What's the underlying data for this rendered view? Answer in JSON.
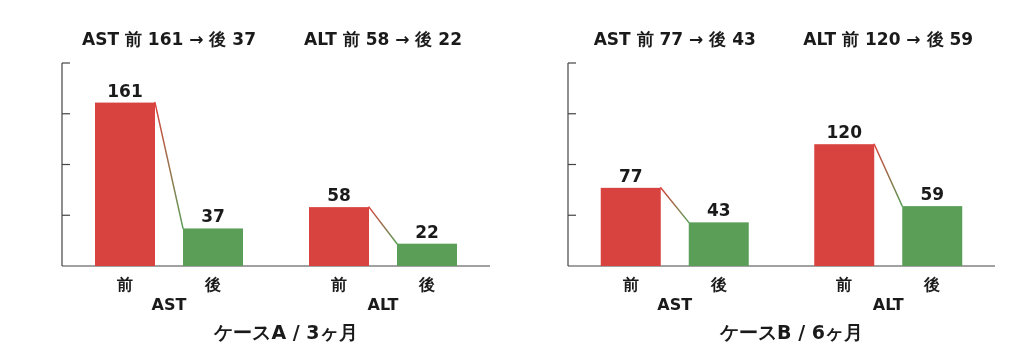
{
  "chart_data": [
    {
      "type": "bar",
      "title": "ケースA / 3ヶ月",
      "categories": [
        "AST",
        "ALT"
      ],
      "series": [
        {
          "name": "前",
          "color": "#d9433f",
          "values": [
            161,
            58
          ]
        },
        {
          "name": "後",
          "color": "#5a9e58",
          "values": [
            37,
            22
          ]
        }
      ],
      "ylim": [
        0,
        200
      ],
      "yticks": [
        {
          "value": 50,
          "label": null
        },
        {
          "value": 100,
          "label": null
        },
        {
          "value": 150,
          "label": null
        },
        {
          "value": 200,
          "label": null
        }
      ],
      "tick_labels": "x",
      "data_labels": true,
      "legend": false,
      "annotations": [
        "AST 前 161 → 後 37",
        "ALT 前 58 → 後 22"
      ]
    },
    {
      "type": "bar",
      "title": "ケースB / 6ヶ月",
      "categories": [
        "AST",
        "ALT"
      ],
      "series": [
        {
          "name": "前",
          "color": "#d9433f",
          "values": [
            77,
            120
          ]
        },
        {
          "name": "後",
          "color": "#5a9e58",
          "values": [
            43,
            59
          ]
        }
      ],
      "ylim": [
        0,
        200
      ],
      "yticks": [
        {
          "value": 50,
          "label": null
        },
        {
          "value": 100,
          "label": null
        },
        {
          "value": 150,
          "label": null
        },
        {
          "value": 200,
          "label": null
        }
      ],
      "tick_labels": "x",
      "data_labels": true,
      "legend": false,
      "annotations": [
        "AST 前 77 → 後 43",
        "ALT 前 120 → 後 59"
      ]
    }
  ]
}
